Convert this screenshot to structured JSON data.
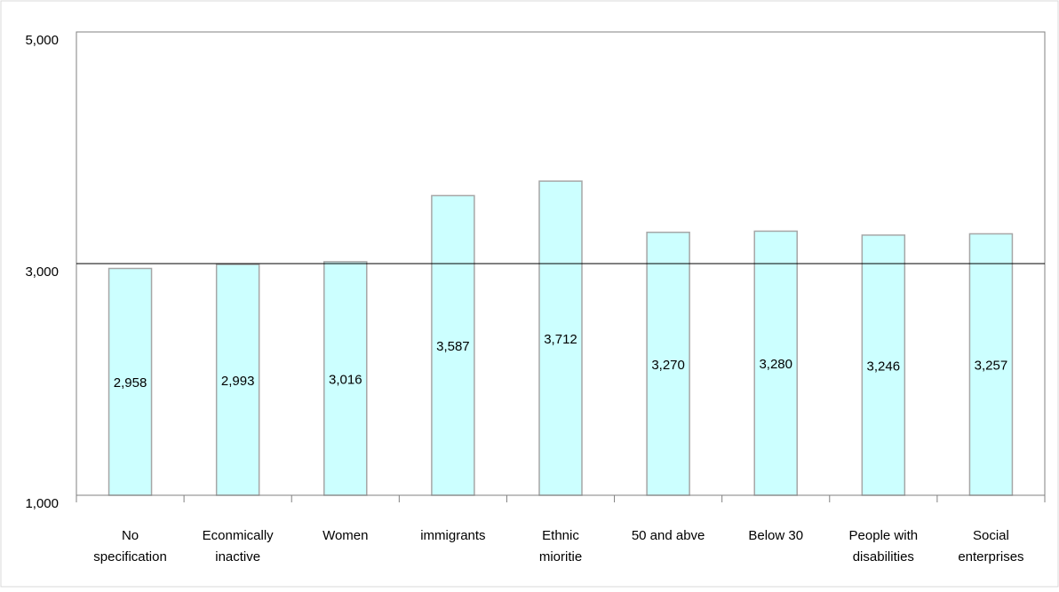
{
  "chart_data": {
    "type": "bar",
    "title": "",
    "xlabel": "",
    "ylabel": "",
    "categories": [
      [
        "No",
        "specification"
      ],
      [
        "Econmically",
        "inactive"
      ],
      [
        "Women"
      ],
      [
        "immigrants"
      ],
      [
        "Ethnic",
        "mioritie"
      ],
      [
        "50 and abve"
      ],
      [
        "Below 30"
      ],
      [
        "People with",
        "disabilities"
      ],
      [
        "Social",
        "enterprises"
      ]
    ],
    "values": [
      2958,
      2993,
      3016,
      3587,
      3712,
      3270,
      3280,
      3246,
      3257
    ],
    "value_labels": [
      "2,958",
      "2,993",
      "3,016",
      "3,587",
      "3,712",
      "3,270",
      "3,280",
      "3,246",
      "3,257"
    ],
    "ylim": [
      1000,
      5000
    ],
    "ytick_values": [
      1000,
      3000,
      5000
    ],
    "ytick_labels": [
      "1,000",
      "3,000",
      "5,000"
    ],
    "reference_line": 3000,
    "grid": false,
    "legend": "none",
    "colors": {
      "bar_fill": "#CCFFFF",
      "bar_stroke": "#A6A6A6",
      "axis": "#808080",
      "reference_line": "#000000",
      "outer_border": "#D9D9D9"
    }
  }
}
